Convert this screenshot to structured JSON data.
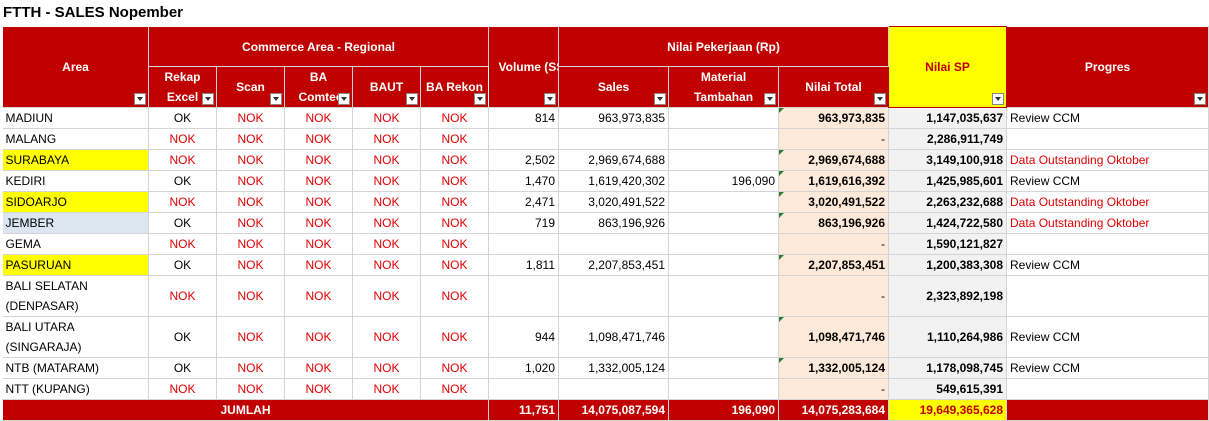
{
  "title": "FTTH - SALES Nopember",
  "headers": {
    "area": "Area",
    "commerce_group": "Commerce Area - Regional",
    "rekap": "Rekap Excel",
    "scan": "Scan",
    "ba": "BA Comtec",
    "baut": "BAUT",
    "ba_rekon": "BA Rekon",
    "volume": "Volume (SSL)",
    "nilai_group": "Nilai Pekerjaan (Rp)",
    "sales": "Sales",
    "material": "Material Tambahan",
    "nilai_total": "Nilai Total",
    "nilai_sp": "Nilai SP",
    "progres": "Progres"
  },
  "rows": [
    {
      "area": "MADIUN",
      "area_style": "",
      "rekap": "OK",
      "scan": "NOK",
      "ba": "NOK",
      "baut": "NOK",
      "rekon": "NOK",
      "volume": "814",
      "sales": "963,973,835",
      "material": "",
      "total": "963,973,835",
      "sp": "1,147,035,637",
      "progres": "Review CCM",
      "progres_red": false,
      "tall": false
    },
    {
      "area": "MALANG",
      "area_style": "",
      "rekap": "NOK",
      "scan": "NOK",
      "ba": "NOK",
      "baut": "NOK",
      "rekon": "NOK",
      "volume": "",
      "sales": "",
      "material": "",
      "total": "-",
      "sp": "2,286,911,749",
      "progres": "",
      "progres_red": false,
      "tall": false
    },
    {
      "area": "SURABAYA",
      "area_style": "hl",
      "rekap": "NOK",
      "scan": "NOK",
      "ba": "NOK",
      "baut": "NOK",
      "rekon": "NOK",
      "volume": "2,502",
      "sales": "2,969,674,688",
      "material": "",
      "total": "2,969,674,688",
      "sp": "3,149,100,918",
      "progres": "Data Outstanding Oktober",
      "progres_red": true,
      "tall": false
    },
    {
      "area": "KEDIRI",
      "area_style": "",
      "rekap": "OK",
      "scan": "NOK",
      "ba": "NOK",
      "baut": "NOK",
      "rekon": "NOK",
      "volume": "1,470",
      "sales": "1,619,420,302",
      "material": "196,090",
      "total": "1,619,616,392",
      "sp": "1,425,985,601",
      "progres": "Review CCM",
      "progres_red": false,
      "tall": false
    },
    {
      "area": "SIDOARJO",
      "area_style": "hl",
      "rekap": "NOK",
      "scan": "NOK",
      "ba": "NOK",
      "baut": "NOK",
      "rekon": "NOK",
      "volume": "2,471",
      "sales": "3,020,491,522",
      "material": "",
      "total": "3,020,491,522",
      "sp": "2,263,232,688",
      "progres": "Data Outstanding Oktober",
      "progres_red": true,
      "tall": false
    },
    {
      "area": "JEMBER",
      "area_style": "jem",
      "rekap": "OK",
      "scan": "NOK",
      "ba": "NOK",
      "baut": "NOK",
      "rekon": "NOK",
      "volume": "719",
      "sales": "863,196,926",
      "material": "",
      "total": "863,196,926",
      "sp": "1,424,722,580",
      "progres": "Data Outstanding Oktober",
      "progres_red": true,
      "tall": false
    },
    {
      "area": "GEMA",
      "area_style": "",
      "rekap": "NOK",
      "scan": "NOK",
      "ba": "NOK",
      "baut": "NOK",
      "rekon": "NOK",
      "volume": "",
      "sales": "",
      "material": "",
      "total": "-",
      "sp": "1,590,121,827",
      "progres": "",
      "progres_red": false,
      "tall": false
    },
    {
      "area": "PASURUAN",
      "area_style": "hl",
      "rekap": "OK",
      "scan": "NOK",
      "ba": "NOK",
      "baut": "NOK",
      "rekon": "NOK",
      "volume": "1,811",
      "sales": "2,207,853,451",
      "material": "",
      "total": "2,207,853,451",
      "sp": "1,200,383,308",
      "progres": "Review CCM",
      "progres_red": false,
      "tall": false
    },
    {
      "area": "BALI SELATAN (DENPASAR)",
      "area_style": "",
      "rekap": "NOK",
      "scan": "NOK",
      "ba": "NOK",
      "baut": "NOK",
      "rekon": "NOK",
      "volume": "",
      "sales": "",
      "material": "",
      "total": "-",
      "sp": "2,323,892,198",
      "progres": "",
      "progres_red": false,
      "tall": true
    },
    {
      "area": "BALI UTARA (SINGARAJA)",
      "area_style": "",
      "rekap": "OK",
      "scan": "NOK",
      "ba": "NOK",
      "baut": "NOK",
      "rekon": "NOK",
      "volume": "944",
      "sales": "1,098,471,746",
      "material": "",
      "total": "1,098,471,746",
      "sp": "1,110,264,986",
      "progres": "Review CCM",
      "progres_red": false,
      "tall": true
    },
    {
      "area": "NTB (MATARAM)",
      "area_style": "",
      "rekap": "OK",
      "scan": "NOK",
      "ba": "NOK",
      "baut": "NOK",
      "rekon": "NOK",
      "volume": "1,020",
      "sales": "1,332,005,124",
      "material": "",
      "total": "1,332,005,124",
      "sp": "1,178,098,745",
      "progres": "Review CCM",
      "progres_red": false,
      "tall": false
    },
    {
      "area": "NTT  (KUPANG)",
      "area_style": "",
      "rekap": "NOK",
      "scan": "NOK",
      "ba": "NOK",
      "baut": "NOK",
      "rekon": "NOK",
      "volume": "",
      "sales": "",
      "material": "",
      "total": "-",
      "sp": "549,615,391",
      "progres": "",
      "progres_red": false,
      "tall": false
    }
  ],
  "totals": {
    "label": "JUMLAH",
    "volume": "11,751",
    "sales": "14,075,087,594",
    "material": "196,090",
    "total": "14,075,283,684",
    "sp": "19,649,365,628"
  }
}
